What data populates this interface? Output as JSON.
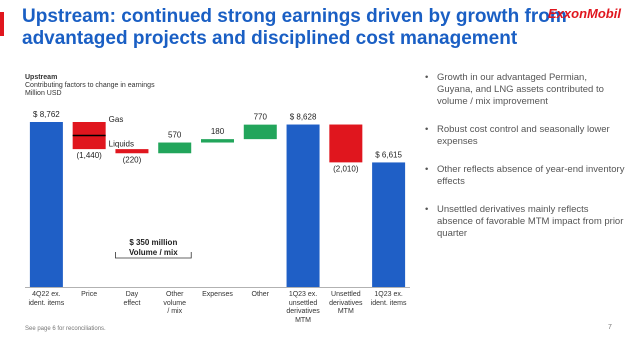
{
  "slide": {
    "title": "Upstream: continued strong earnings driven by growth from advantaged projects and disciplined cost management",
    "logo": "ExxonMobil",
    "bullets": [
      "Growth in our advantaged Permian, Guyana, and LNG assets contributed to volume / mix improvement",
      "Robust cost control and seasonally lower expenses",
      "Other reflects absence of year-end inventory effects",
      "Unsettled derivatives mainly reflects absence of favorable MTM impact from prior quarter"
    ],
    "footnote": "See page 6 for reconciliations.",
    "page_number": "7"
  },
  "chart_data": {
    "type": "waterfall",
    "title": "Upstream",
    "subtitle": "Contributing factors to change in earnings",
    "unit_label": "Million USD",
    "categories": [
      "4Q22 ex.\nident. items",
      "Price",
      "Day\neffect",
      "Other\nvolume\n/ mix",
      "Expenses",
      "Other",
      "1Q23 ex.\nunsettled\nderivatives\nMTM",
      "Unsettled\nderivatives\nMTM",
      "1Q23 ex.\nident. items"
    ],
    "measures": [
      "total",
      "relative",
      "relative",
      "relative",
      "relative",
      "relative",
      "total",
      "relative",
      "total"
    ],
    "values": [
      8762,
      -1440,
      -220,
      570,
      180,
      770,
      8628,
      -2010,
      6615
    ],
    "value_labels": [
      "$ 8,762",
      "(1,440)",
      "(220)",
      "570",
      "180",
      "770",
      "$ 8,628",
      "(2,010)",
      "$ 6,615"
    ],
    "colors": {
      "total": "#1f5fc6",
      "increase": "#22a55b",
      "decrease": "#e0161e"
    },
    "price_segments": [
      "Gas",
      "Liquids"
    ],
    "annotation": {
      "value": 350,
      "value_label": "$ 350 million",
      "label": "Volume / mix"
    }
  }
}
